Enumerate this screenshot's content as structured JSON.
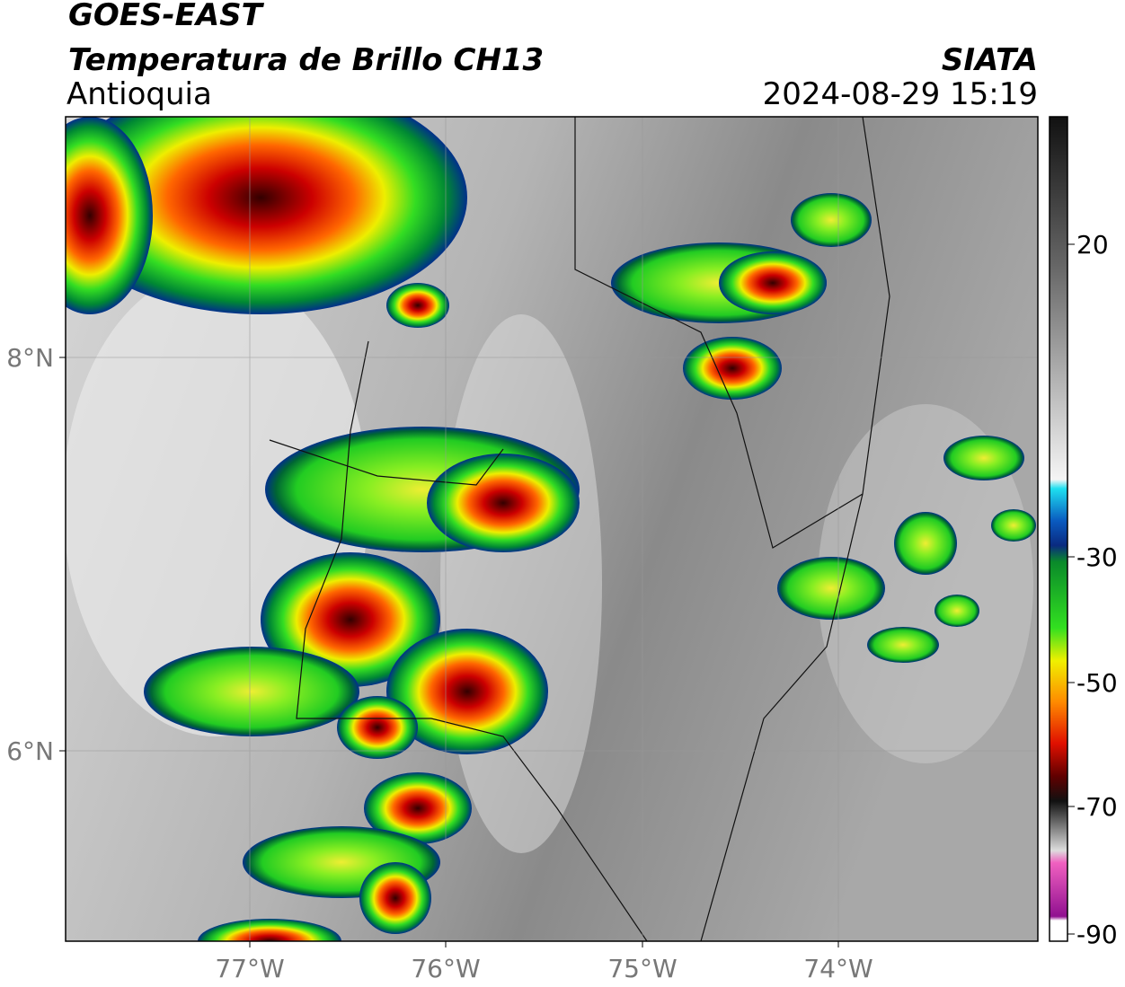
{
  "header": {
    "satellite": "GOES-EAST",
    "product": "Temperatura de Brillo CH13",
    "region": "Antioquia",
    "source": "SIATA",
    "datetime": "2024-08-29 15:19"
  },
  "map": {
    "lat_labels": [
      "8°N",
      "6°N"
    ],
    "lon_labels": [
      "77°W",
      "76°W",
      "75°W",
      "74°W"
    ]
  },
  "colorbar": {
    "ticks": [
      "20",
      "-30",
      "-50",
      "-70",
      "-90"
    ]
  }
}
